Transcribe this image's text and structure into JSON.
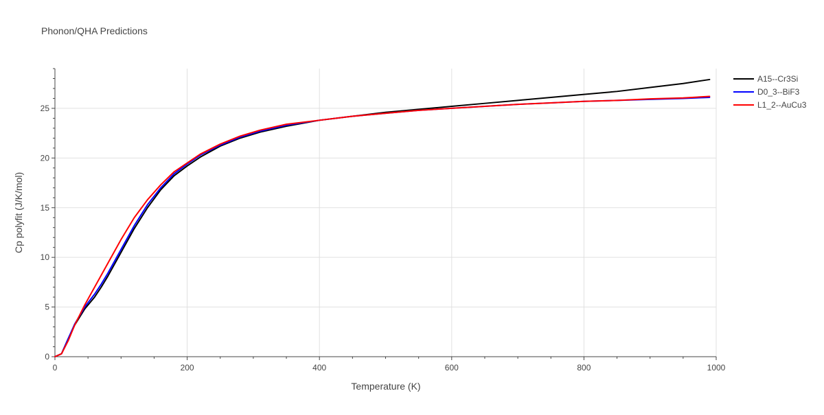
{
  "chart_data": {
    "type": "line",
    "title": "Phonon/QHA Predictions",
    "xlabel": "Temperature (K)",
    "ylabel": "Cp polyfit (J/K/mol)",
    "xlim": [
      0,
      1000
    ],
    "ylim": [
      0,
      29
    ],
    "xticks": [
      0,
      200,
      400,
      600,
      800,
      1000
    ],
    "yticks": [
      0,
      5,
      10,
      15,
      20,
      25
    ],
    "grid": true,
    "legend_position": "top-right",
    "series": [
      {
        "name": "A15--Cr3Si",
        "color": "#000000",
        "x": [
          0,
          10,
          20,
          30,
          45,
          60,
          70,
          80,
          90,
          100,
          120,
          140,
          160,
          180,
          200,
          220,
          250,
          280,
          310,
          350,
          400,
          450,
          500,
          550,
          600,
          650,
          700,
          750,
          800,
          850,
          900,
          950,
          990
        ],
        "y": [
          0,
          0.3,
          1.8,
          3.2,
          4.8,
          6.0,
          7.0,
          8.1,
          9.3,
          10.5,
          12.9,
          15.0,
          16.8,
          18.2,
          19.2,
          20.1,
          21.2,
          22.0,
          22.6,
          23.2,
          23.8,
          24.2,
          24.6,
          24.9,
          25.2,
          25.5,
          25.8,
          26.1,
          26.4,
          26.7,
          27.1,
          27.5,
          27.9
        ]
      },
      {
        "name": "D0_3--BiF3",
        "color": "#0000ff",
        "x": [
          0,
          10,
          20,
          30,
          45,
          60,
          70,
          80,
          90,
          100,
          120,
          140,
          160,
          180,
          200,
          220,
          250,
          280,
          310,
          350,
          400,
          450,
          500,
          550,
          600,
          650,
          700,
          750,
          800,
          850,
          900,
          950,
          990
        ],
        "y": [
          0,
          0.3,
          1.8,
          3.3,
          5.0,
          6.3,
          7.3,
          8.4,
          9.6,
          10.8,
          13.2,
          15.3,
          17.0,
          18.4,
          19.4,
          20.3,
          21.3,
          22.1,
          22.7,
          23.3,
          23.8,
          24.2,
          24.5,
          24.8,
          25.0,
          25.2,
          25.4,
          25.55,
          25.7,
          25.8,
          25.9,
          26.0,
          26.1
        ]
      },
      {
        "name": "L1_2--AuCu3",
        "color": "#ff0000",
        "x": [
          0,
          10,
          20,
          30,
          45,
          60,
          70,
          80,
          90,
          100,
          120,
          140,
          160,
          180,
          200,
          220,
          250,
          280,
          310,
          350,
          400,
          450,
          500,
          550,
          600,
          650,
          700,
          750,
          800,
          850,
          900,
          950,
          990
        ],
        "y": [
          0,
          0.3,
          1.6,
          3.2,
          5.2,
          7.0,
          8.2,
          9.4,
          10.6,
          11.8,
          14.0,
          15.8,
          17.3,
          18.6,
          19.5,
          20.4,
          21.4,
          22.2,
          22.8,
          23.4,
          23.8,
          24.2,
          24.5,
          24.8,
          25.0,
          25.2,
          25.4,
          25.55,
          25.7,
          25.8,
          25.95,
          26.05,
          26.2
        ]
      }
    ]
  }
}
